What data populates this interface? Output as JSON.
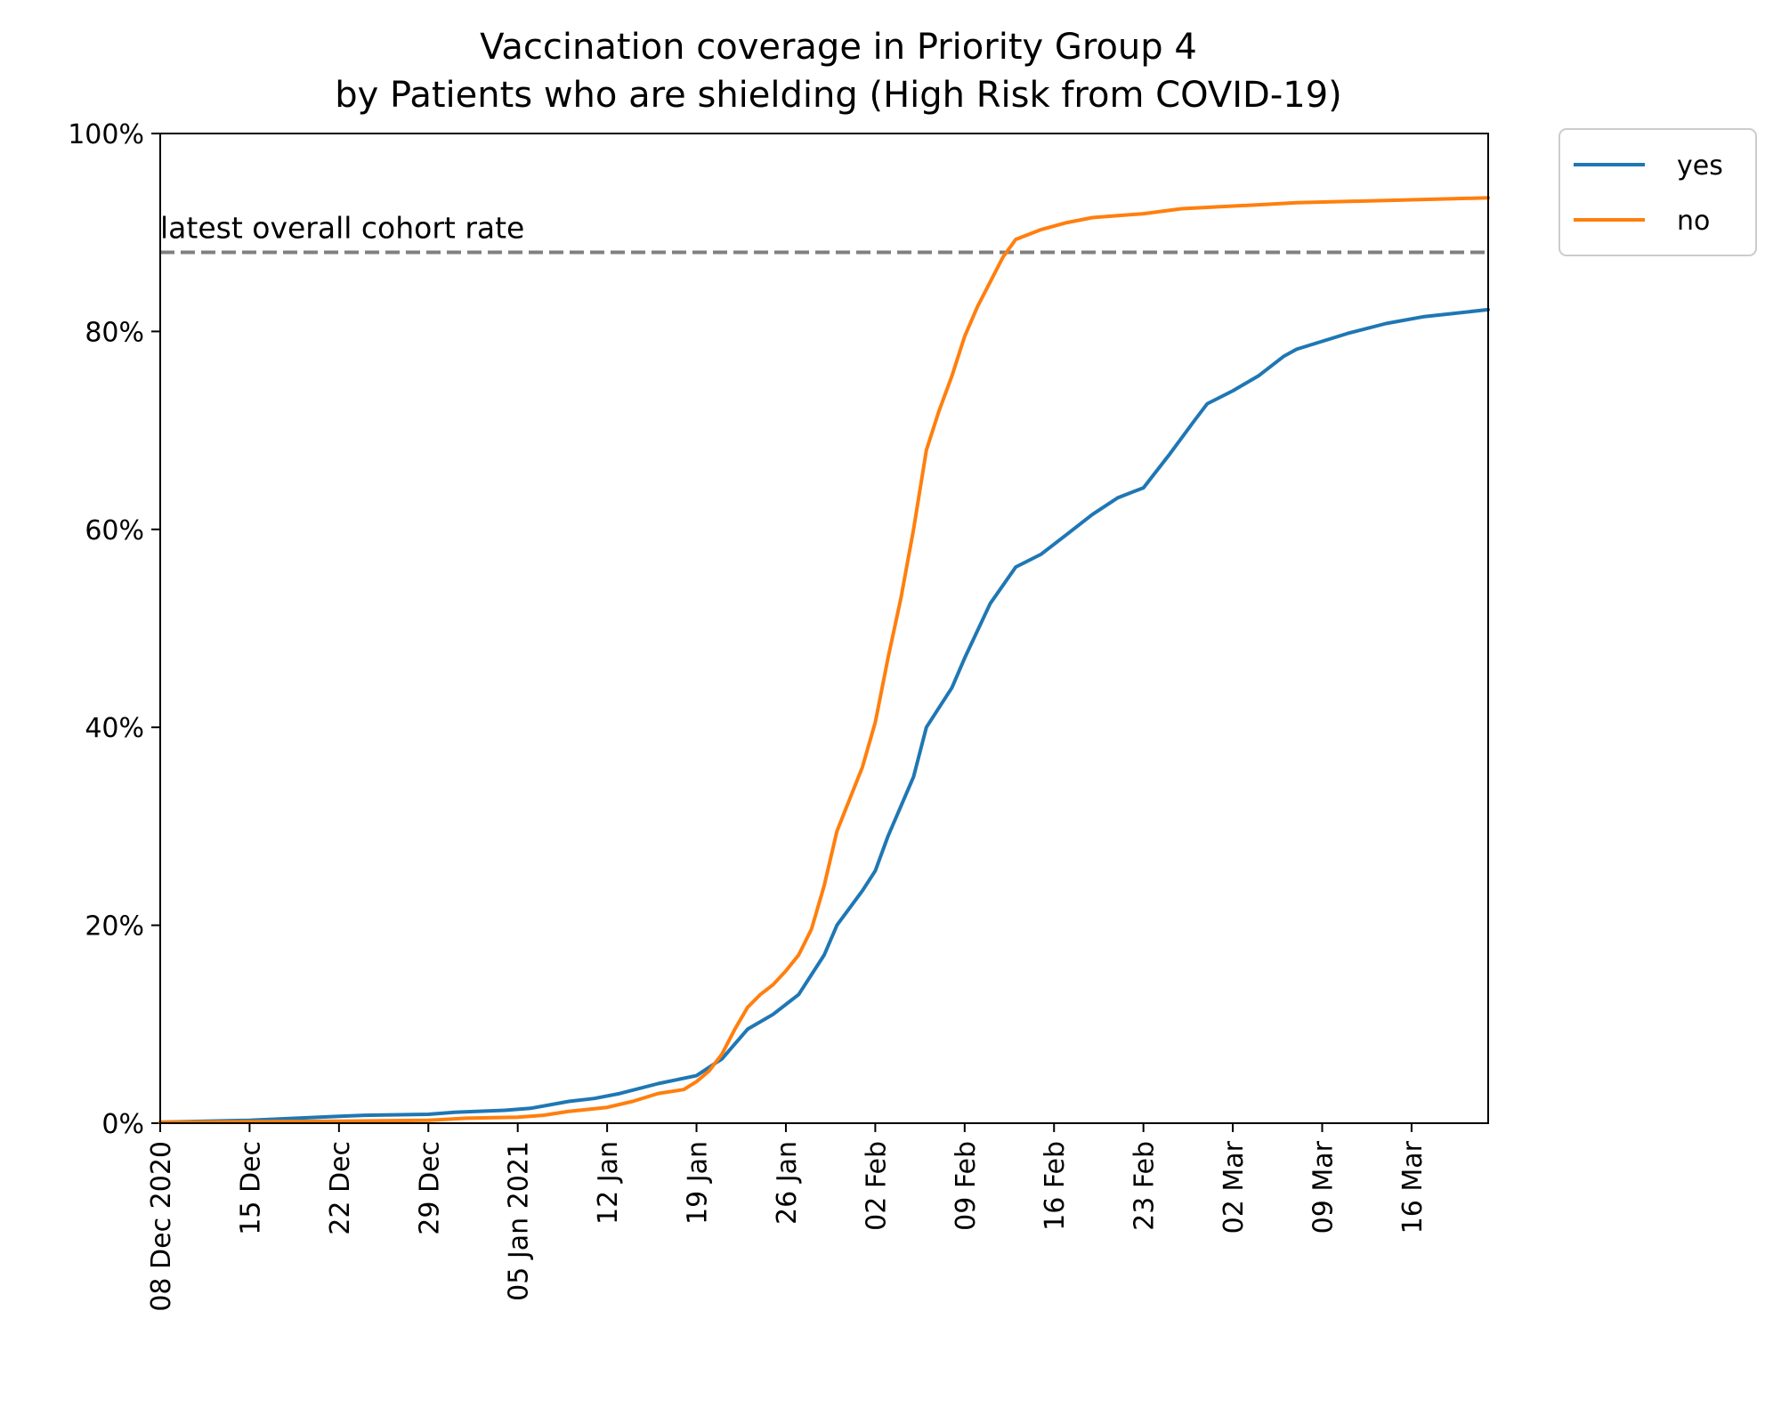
{
  "chart_data": {
    "type": "line",
    "title": "Vaccination coverage in Priority Group 4",
    "subtitle": "by Patients who are shielding (High Risk from COVID-19)",
    "xlabel": "",
    "ylabel": "",
    "ylim": [
      0,
      100
    ],
    "xlim": [
      "2020-12-08",
      "2021-03-22"
    ],
    "x_ticks": [
      {
        "date": "2020-12-08",
        "label": "08 Dec 2020"
      },
      {
        "date": "2020-12-15",
        "label": "15 Dec"
      },
      {
        "date": "2020-12-22",
        "label": "22 Dec"
      },
      {
        "date": "2020-12-29",
        "label": "29 Dec"
      },
      {
        "date": "2021-01-05",
        "label": "05 Jan 2021"
      },
      {
        "date": "2021-01-12",
        "label": "12 Jan"
      },
      {
        "date": "2021-01-19",
        "label": "19 Jan"
      },
      {
        "date": "2021-01-26",
        "label": "26 Jan"
      },
      {
        "date": "2021-02-02",
        "label": "02 Feb"
      },
      {
        "date": "2021-02-09",
        "label": "09 Feb"
      },
      {
        "date": "2021-02-16",
        "label": "16 Feb"
      },
      {
        "date": "2021-02-23",
        "label": "23 Feb"
      },
      {
        "date": "2021-03-02",
        "label": "02 Mar"
      },
      {
        "date": "2021-03-09",
        "label": "09 Mar"
      },
      {
        "date": "2021-03-16",
        "label": "16 Mar"
      }
    ],
    "y_ticks": [
      {
        "value": 0,
        "label": "0%"
      },
      {
        "value": 20,
        "label": "20%"
      },
      {
        "value": 40,
        "label": "40%"
      },
      {
        "value": 60,
        "label": "60%"
      },
      {
        "value": 80,
        "label": "80%"
      },
      {
        "value": 100,
        "label": "100%"
      }
    ],
    "reference_line": {
      "value": 88,
      "label": "latest overall cohort rate",
      "color": "#808080",
      "style": "dashed"
    },
    "legend": {
      "position": "outside-top-right"
    },
    "grid": false,
    "series": [
      {
        "name": "yes",
        "color": "#1f77b4",
        "points": [
          [
            "2020-12-08",
            0.1
          ],
          [
            "2020-12-15",
            0.3
          ],
          [
            "2020-12-22",
            0.7
          ],
          [
            "2020-12-24",
            0.8
          ],
          [
            "2020-12-29",
            0.9
          ],
          [
            "2020-12-31",
            1.1
          ],
          [
            "2021-01-04",
            1.3
          ],
          [
            "2021-01-06",
            1.5
          ],
          [
            "2021-01-09",
            2.2
          ],
          [
            "2021-01-11",
            2.5
          ],
          [
            "2021-01-13",
            3.0
          ],
          [
            "2021-01-16",
            4.0
          ],
          [
            "2021-01-19",
            4.8
          ],
          [
            "2021-01-21",
            6.5
          ],
          [
            "2021-01-23",
            9.5
          ],
          [
            "2021-01-25",
            11.0
          ],
          [
            "2021-01-27",
            13.0
          ],
          [
            "2021-01-29",
            17.0
          ],
          [
            "2021-01-30",
            20.0
          ],
          [
            "2021-02-01",
            23.5
          ],
          [
            "2021-02-02",
            25.5
          ],
          [
            "2021-02-03",
            29.0
          ],
          [
            "2021-02-05",
            35.0
          ],
          [
            "2021-02-06",
            40.0
          ],
          [
            "2021-02-08",
            44.0
          ],
          [
            "2021-02-09",
            47.0
          ],
          [
            "2021-02-11",
            52.5
          ],
          [
            "2021-02-13",
            56.2
          ],
          [
            "2021-02-15",
            57.5
          ],
          [
            "2021-02-17",
            59.5
          ],
          [
            "2021-02-19",
            61.5
          ],
          [
            "2021-02-21",
            63.2
          ],
          [
            "2021-02-23",
            64.2
          ],
          [
            "2021-02-25",
            67.5
          ],
          [
            "2021-02-27",
            71.0
          ],
          [
            "2021-02-28",
            72.7
          ],
          [
            "2021-03-02",
            74.0
          ],
          [
            "2021-03-04",
            75.5
          ],
          [
            "2021-03-06",
            77.5
          ],
          [
            "2021-03-07",
            78.2
          ],
          [
            "2021-03-09",
            79.0
          ],
          [
            "2021-03-11",
            79.8
          ],
          [
            "2021-03-14",
            80.8
          ],
          [
            "2021-03-17",
            81.5
          ],
          [
            "2021-03-22",
            82.2
          ]
        ]
      },
      {
        "name": "no",
        "color": "#ff7f0e",
        "points": [
          [
            "2020-12-08",
            0.1
          ],
          [
            "2020-12-22",
            0.2
          ],
          [
            "2020-12-29",
            0.3
          ],
          [
            "2021-01-01",
            0.5
          ],
          [
            "2021-01-05",
            0.6
          ],
          [
            "2021-01-07",
            0.8
          ],
          [
            "2021-01-09",
            1.2
          ],
          [
            "2021-01-12",
            1.6
          ],
          [
            "2021-01-14",
            2.2
          ],
          [
            "2021-01-16",
            3.0
          ],
          [
            "2021-01-18",
            3.4
          ],
          [
            "2021-01-19",
            4.2
          ],
          [
            "2021-01-20",
            5.3
          ],
          [
            "2021-01-21",
            7.0
          ],
          [
            "2021-01-22",
            9.5
          ],
          [
            "2021-01-23",
            11.7
          ],
          [
            "2021-01-24",
            13.0
          ],
          [
            "2021-01-25",
            14.0
          ],
          [
            "2021-01-26",
            15.4
          ],
          [
            "2021-01-27",
            17.0
          ],
          [
            "2021-01-28",
            19.6
          ],
          [
            "2021-01-29",
            24.0
          ],
          [
            "2021-01-30",
            29.5
          ],
          [
            "2021-02-01",
            36.0
          ],
          [
            "2021-02-02",
            40.5
          ],
          [
            "2021-02-03",
            47.0
          ],
          [
            "2021-02-04",
            53.0
          ],
          [
            "2021-02-05",
            60.0
          ],
          [
            "2021-02-06",
            68.0
          ],
          [
            "2021-02-07",
            72.0
          ],
          [
            "2021-02-08",
            75.5
          ],
          [
            "2021-02-09",
            79.5
          ],
          [
            "2021-02-10",
            82.5
          ],
          [
            "2021-02-11",
            85.0
          ],
          [
            "2021-02-12",
            87.5
          ],
          [
            "2021-02-13",
            89.3
          ],
          [
            "2021-02-15",
            90.3
          ],
          [
            "2021-02-17",
            91.0
          ],
          [
            "2021-02-19",
            91.5
          ],
          [
            "2021-02-21",
            91.7
          ],
          [
            "2021-02-23",
            91.9
          ],
          [
            "2021-02-26",
            92.4
          ],
          [
            "2021-03-01",
            92.6
          ],
          [
            "2021-03-04",
            92.8
          ],
          [
            "2021-03-07",
            93.0
          ],
          [
            "2021-03-13",
            93.2
          ],
          [
            "2021-03-22",
            93.5
          ]
        ]
      }
    ]
  }
}
